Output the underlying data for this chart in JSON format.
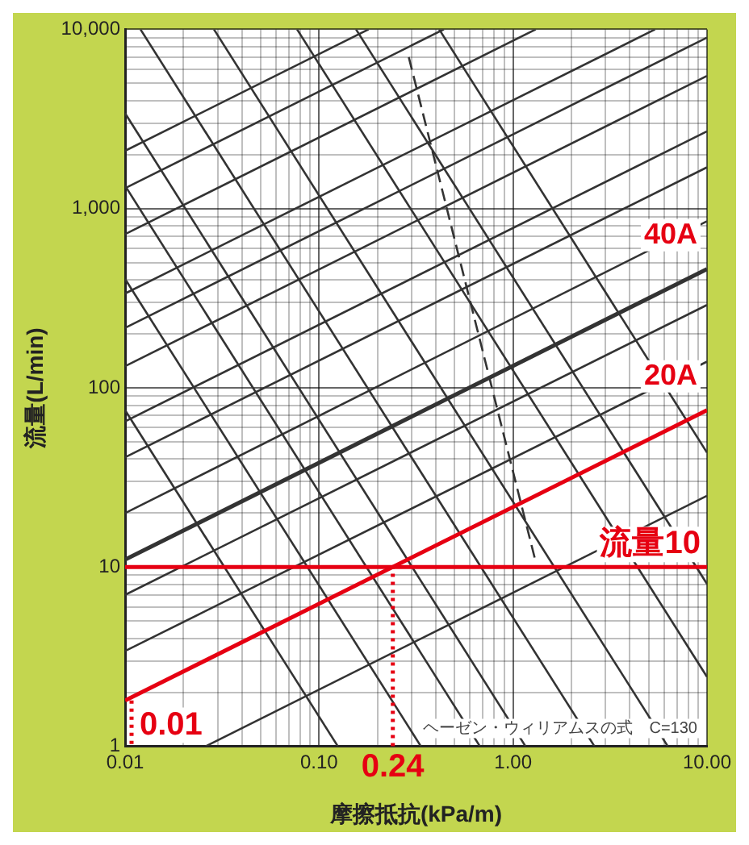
{
  "chart_data": {
    "type": "line",
    "xlabel": "摩擦抵抗(kPa/m)",
    "ylabel": "流量(L/min)",
    "log": "xy",
    "grid": true,
    "legend": false,
    "marker": "none",
    "xlim": [
      0.01,
      10
    ],
    "ylim": [
      1,
      10000
    ],
    "xticks": [
      0.01,
      {
        "value": 0.02,
        "label": null
      },
      {
        "value": 0.03,
        "label": null
      },
      {
        "value": 0.04,
        "label": null
      },
      {
        "value": 0.05,
        "label": null
      },
      {
        "value": 0.06,
        "label": null
      },
      {
        "value": 0.07,
        "label": null
      },
      {
        "value": 0.08,
        "label": null
      },
      {
        "value": 0.09,
        "label": null
      },
      {
        "value": 0.1,
        "label": "0.10"
      },
      {
        "value": 0.2,
        "label": null
      },
      {
        "value": 0.3,
        "label": null
      },
      {
        "value": 0.4,
        "label": null
      },
      {
        "value": 0.5,
        "label": null
      },
      {
        "value": 0.6,
        "label": null
      },
      {
        "value": 0.7,
        "label": null
      },
      {
        "value": 0.8,
        "label": null
      },
      {
        "value": 0.9,
        "label": null
      },
      {
        "value": 1,
        "label": "1.00"
      },
      {
        "value": 2,
        "label": null
      },
      {
        "value": 3,
        "label": null
      },
      {
        "value": 4,
        "label": null
      },
      {
        "value": 5,
        "label": null
      },
      {
        "value": 6,
        "label": null
      },
      {
        "value": 7,
        "label": null
      },
      {
        "value": 8,
        "label": null
      },
      {
        "value": 9,
        "label": null
      },
      {
        "value": 10,
        "label": "10.00"
      }
    ],
    "yticks": [
      1,
      {
        "value": 2,
        "label": null
      },
      {
        "value": 3,
        "label": null
      },
      {
        "value": 4,
        "label": null
      },
      {
        "value": 5,
        "label": null
      },
      {
        "value": 6,
        "label": null
      },
      {
        "value": 7,
        "label": null
      },
      {
        "value": 8,
        "label": null
      },
      {
        "value": 9,
        "label": null
      },
      10,
      {
        "value": 20,
        "label": null
      },
      {
        "value": 30,
        "label": null
      },
      {
        "value": 40,
        "label": null
      },
      {
        "value": 50,
        "label": null
      },
      {
        "value": 60,
        "label": null
      },
      {
        "value": 70,
        "label": null
      },
      {
        "value": 80,
        "label": null
      },
      {
        "value": 90,
        "label": null
      },
      100,
      {
        "value": 200,
        "label": null
      },
      {
        "value": 300,
        "label": null
      },
      {
        "value": 400,
        "label": null
      },
      {
        "value": 500,
        "label": null
      },
      {
        "value": 600,
        "label": null
      },
      {
        "value": 700,
        "label": null
      },
      {
        "value": 800,
        "label": null
      },
      {
        "value": 900,
        "label": null
      },
      {
        "value": 1000,
        "label": "1,000"
      },
      {
        "value": 2000,
        "label": null
      },
      {
        "value": 3000,
        "label": null
      },
      {
        "value": 4000,
        "label": null
      },
      {
        "value": 5000,
        "label": null
      },
      {
        "value": 6000,
        "label": null
      },
      {
        "value": 7000,
        "label": null
      },
      {
        "value": 8000,
        "label": null
      },
      {
        "value": 9000,
        "label": null
      },
      {
        "value": 10000,
        "label": "10,000"
      }
    ],
    "series": [
      {
        "name": "20A",
        "color": "#e60012",
        "x": [
          0.01,
          10
        ],
        "values": [
          1.8,
          75
        ]
      },
      {
        "name": "40A",
        "color": "#333333",
        "x": [
          0.01,
          10
        ],
        "values": [
          11,
          460
        ]
      },
      {
        "color": "#333333",
        "x": [
          0.026,
          10
        ],
        "values": [
          1,
          25
        ]
      },
      {
        "color": "#333333",
        "x": [
          0.01,
          10
        ],
        "values": [
          3.4,
          140
        ]
      },
      {
        "color": "#333333",
        "x": [
          0.01,
          10
        ],
        "values": [
          7,
          290
        ]
      },
      {
        "color": "#333333",
        "x": [
          0.01,
          10
        ],
        "values": [
          20,
          850
        ]
      },
      {
        "color": "#333333",
        "x": [
          0.01,
          10
        ],
        "values": [
          41,
          1700
        ]
      },
      {
        "color": "#333333",
        "x": [
          0.01,
          10
        ],
        "values": [
          65,
          2700
        ]
      },
      {
        "color": "#333333",
        "x": [
          0.01,
          10
        ],
        "values": [
          132,
          5500
        ]
      },
      {
        "color": "#333333",
        "x": [
          0.01,
          10
        ],
        "values": [
          216,
          9000
        ]
      },
      {
        "color": "#333333",
        "x": [
          0.01,
          5.4
        ],
        "values": [
          336,
          10000
        ]
      },
      {
        "color": "#333333",
        "x": [
          0.01,
          1.31
        ],
        "values": [
          720,
          10000
        ]
      },
      {
        "color": "#333333",
        "x": [
          0.01,
          0.44
        ],
        "values": [
          1300,
          10000
        ]
      },
      {
        "color": "#333333",
        "x": [
          0.01,
          0.18
        ],
        "values": [
          2100,
          10000
        ]
      },
      {
        "color": "#333333",
        "x": [
          0.01,
          0.125
        ],
        "values": [
          75,
          1
        ]
      },
      {
        "color": "#333333",
        "x": [
          0.01,
          0.335
        ],
        "values": [
          405,
          1
        ]
      },
      {
        "color": "#333333",
        "x": [
          0.01,
          0.675
        ],
        "values": [
          1340,
          1
        ]
      },
      {
        "color": "#333333",
        "x": [
          0.01,
          1.16
        ],
        "values": [
          3400,
          1
        ]
      },
      {
        "color": "#333333",
        "x": [
          0.012,
          2.63
        ],
        "values": [
          10000,
          1
        ]
      },
      {
        "color": "#333333",
        "x": [
          0.0287,
          6.28
        ],
        "values": [
          10000,
          1
        ]
      },
      {
        "color": "#333333",
        "x": [
          0.077,
          10
        ],
        "values": [
          10000,
          2.44
        ]
      },
      {
        "color": "#333333",
        "x": [
          0.155,
          10
        ],
        "values": [
          10000,
          8.05
        ]
      },
      {
        "color": "#333333",
        "x": [
          0.416,
          10
        ],
        "values": [
          10000,
          43.5
        ]
      },
      {
        "color": "#333333",
        "x": [
          0.29,
          1.3
        ],
        "values": [
          7000,
          11
        ],
        "line_style": "dashed"
      }
    ],
    "ref_lines": [
      {
        "axis": "y",
        "value": 10,
        "label": "流量10",
        "color": "#e60012",
        "line_style": "solid"
      },
      {
        "axis": "x",
        "value": 0.24,
        "label": "0.24",
        "color": "#e60012",
        "line_style": "dotted"
      }
    ],
    "annotations": [
      "ヘーゼン・ウィリアムスの式　C=130",
      {
        "text": "0.01",
        "x": 0.01,
        "y": 1.8
      }
    ]
  }
}
